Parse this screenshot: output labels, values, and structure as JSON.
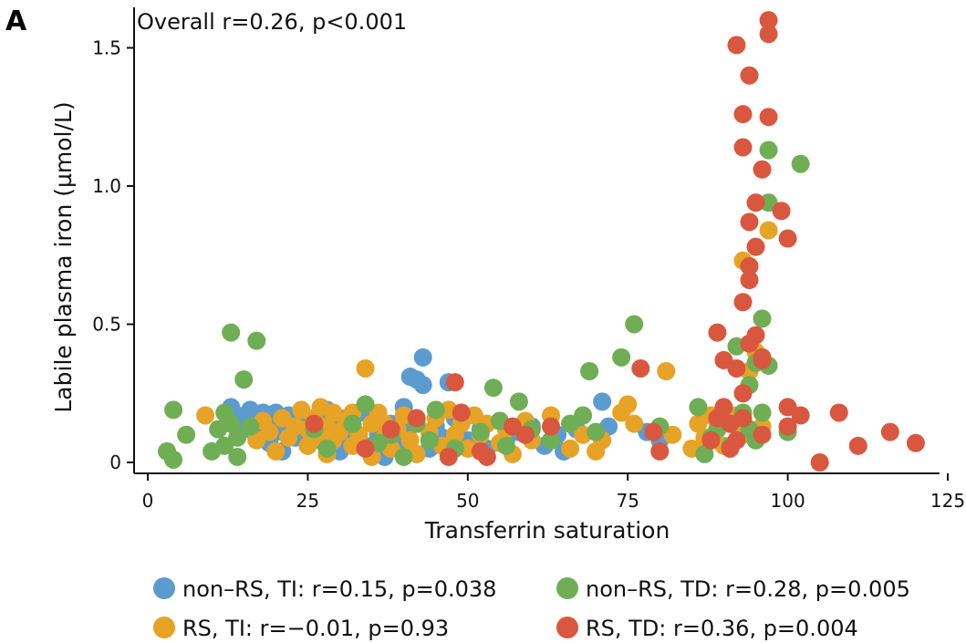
{
  "panel_label": "A",
  "colors": {
    "non_rs_ti": "#5b9bd0",
    "rs_ti": "#e6a325",
    "non_rs_td": "#6fae54",
    "rs_td": "#d9573f",
    "axis": "#111111"
  },
  "chart_data": {
    "type": "scatter",
    "title": "",
    "annotation": "Overall r=0.26, p<0.001",
    "xlabel": "Transferrin saturation",
    "ylabel": "Labile plasma iron (µmol/L)",
    "xlim": [
      0,
      127
    ],
    "ylim": [
      0,
      1.65
    ],
    "xticks": [
      0,
      25,
      50,
      75,
      100,
      125
    ],
    "xtick_labels": [
      "0",
      "25",
      "50",
      "75",
      "100",
      "125"
    ],
    "yticks": [
      0,
      0.5,
      1.0,
      1.5
    ],
    "ytick_labels": [
      "0",
      "0.5",
      "1.0",
      "1.5"
    ],
    "grid": false,
    "legend_position": "bottom",
    "series": [
      {
        "name": "non–RS, TI: r=0.15, p=0.038",
        "color": "#5b9bd0",
        "points": [
          [
            13,
            0.2
          ],
          [
            14,
            0.17
          ],
          [
            15,
            0.14
          ],
          [
            16,
            0.12
          ],
          [
            16,
            0.19
          ],
          [
            17,
            0.16
          ],
          [
            17,
            0.09
          ],
          [
            18,
            0.13
          ],
          [
            18,
            0.18
          ],
          [
            19,
            0.07
          ],
          [
            19,
            0.15
          ],
          [
            20,
            0.11
          ],
          [
            20,
            0.18
          ],
          [
            21,
            0.04
          ],
          [
            21,
            0.14
          ],
          [
            22,
            0.17
          ],
          [
            23,
            0.09
          ],
          [
            23,
            0.13
          ],
          [
            24,
            0.18
          ],
          [
            25,
            0.06
          ],
          [
            25,
            0.11
          ],
          [
            26,
            0.15
          ],
          [
            27,
            0.08
          ],
          [
            28,
            0.19
          ],
          [
            29,
            0.12
          ],
          [
            30,
            0.04
          ],
          [
            30,
            0.16
          ],
          [
            31,
            0.09
          ],
          [
            32,
            0.13
          ],
          [
            33,
            0.18
          ],
          [
            34,
            0.06
          ],
          [
            35,
            0.15
          ],
          [
            36,
            0.1
          ],
          [
            37,
            0.02
          ],
          [
            38,
            0.14
          ],
          [
            39,
            0.07
          ],
          [
            40,
            0.11
          ],
          [
            40,
            0.2
          ],
          [
            41,
            0.31
          ],
          [
            42,
            0.3
          ],
          [
            43,
            0.38
          ],
          [
            43,
            0.28
          ],
          [
            44,
            0.05
          ],
          [
            45,
            0.13
          ],
          [
            46,
            0.09
          ],
          [
            47,
            0.29
          ],
          [
            48,
            0.16
          ],
          [
            50,
            0.08
          ],
          [
            52,
            0.12
          ],
          [
            53,
            0.05
          ],
          [
            55,
            0.15
          ],
          [
            56,
            0.08
          ],
          [
            58,
            0.11
          ],
          [
            60,
            0.13
          ],
          [
            62,
            0.06
          ],
          [
            64,
            0.1
          ],
          [
            65,
            0.04
          ],
          [
            67,
            0.12
          ],
          [
            71,
            0.22
          ],
          [
            72,
            0.13
          ],
          [
            78,
            0.11
          ],
          [
            80,
            0.08
          ]
        ]
      },
      {
        "name": "RS, TI: r=−0.01, p=0.93",
        "color": "#e6a325",
        "points": [
          [
            9,
            0.17
          ],
          [
            17,
            0.08
          ],
          [
            18,
            0.15
          ],
          [
            19,
            0.11
          ],
          [
            20,
            0.04
          ],
          [
            21,
            0.16
          ],
          [
            22,
            0.09
          ],
          [
            23,
            0.13
          ],
          [
            24,
            0.19
          ],
          [
            25,
            0.06
          ],
          [
            25,
            0.12
          ],
          [
            26,
            0.16
          ],
          [
            27,
            0.09
          ],
          [
            27,
            0.2
          ],
          [
            28,
            0.13
          ],
          [
            28,
            0.03
          ],
          [
            29,
            0.18
          ],
          [
            29,
            0.08
          ],
          [
            30,
            0.11
          ],
          [
            31,
            0.15
          ],
          [
            32,
            0.06
          ],
          [
            32,
            0.18
          ],
          [
            33,
            0.1
          ],
          [
            34,
            0.34
          ],
          [
            35,
            0.14
          ],
          [
            35,
            0.02
          ],
          [
            36,
            0.18
          ],
          [
            37,
            0.09
          ],
          [
            37,
            0.14
          ],
          [
            38,
            0.05
          ],
          [
            39,
            0.12
          ],
          [
            40,
            0.17
          ],
          [
            41,
            0.08
          ],
          [
            42,
            0.14
          ],
          [
            42,
            0.03
          ],
          [
            44,
            0.11
          ],
          [
            45,
            0.16
          ],
          [
            46,
            0.06
          ],
          [
            47,
            0.19
          ],
          [
            48,
            0.1
          ],
          [
            49,
            0.14
          ],
          [
            50,
            0.05
          ],
          [
            51,
            0.17
          ],
          [
            52,
            0.1
          ],
          [
            53,
            0.14
          ],
          [
            55,
            0.07
          ],
          [
            56,
            0.12
          ],
          [
            57,
            0.03
          ],
          [
            59,
            0.15
          ],
          [
            60,
            0.08
          ],
          [
            63,
            0.17
          ],
          [
            66,
            0.05
          ],
          [
            68,
            0.1
          ],
          [
            70,
            0.04
          ],
          [
            71,
            0.08
          ],
          [
            74,
            0.18
          ],
          [
            75,
            0.21
          ],
          [
            76,
            0.14
          ],
          [
            81,
            0.33
          ],
          [
            82,
            0.1
          ],
          [
            85,
            0.05
          ],
          [
            86,
            0.14
          ],
          [
            87,
            0.09
          ],
          [
            88,
            0.17
          ],
          [
            89,
            0.12
          ],
          [
            90,
            0.06
          ],
          [
            91,
            0.14
          ],
          [
            92,
            0.17
          ],
          [
            93,
            0.73
          ],
          [
            93,
            0.1
          ],
          [
            94,
            0.33
          ],
          [
            95,
            0.4
          ],
          [
            96,
            0.13
          ],
          [
            97,
            0.84
          ]
        ]
      },
      {
        "name": "non–RS, TD: r=0.28, p=0.005",
        "color": "#6fae54",
        "points": [
          [
            3,
            0.04
          ],
          [
            4,
            0.19
          ],
          [
            4,
            0.01
          ],
          [
            6,
            0.1
          ],
          [
            10,
            0.04
          ],
          [
            11,
            0.12
          ],
          [
            12,
            0.18
          ],
          [
            12,
            0.06
          ],
          [
            13,
            0.47
          ],
          [
            13,
            0.14
          ],
          [
            14,
            0.09
          ],
          [
            14,
            0.02
          ],
          [
            15,
            0.3
          ],
          [
            16,
            0.13
          ],
          [
            17,
            0.44
          ],
          [
            26,
            0.12
          ],
          [
            28,
            0.05
          ],
          [
            32,
            0.14
          ],
          [
            34,
            0.21
          ],
          [
            36,
            0.07
          ],
          [
            38,
            0.1
          ],
          [
            40,
            0.02
          ],
          [
            42,
            0.14
          ],
          [
            44,
            0.08
          ],
          [
            45,
            0.19
          ],
          [
            48,
            0.05
          ],
          [
            52,
            0.11
          ],
          [
            54,
            0.27
          ],
          [
            55,
            0.15
          ],
          [
            56,
            0.06
          ],
          [
            58,
            0.22
          ],
          [
            60,
            0.12
          ],
          [
            63,
            0.08
          ],
          [
            66,
            0.14
          ],
          [
            68,
            0.17
          ],
          [
            69,
            0.33
          ],
          [
            70,
            0.11
          ],
          [
            74,
            0.38
          ],
          [
            76,
            0.5
          ],
          [
            80,
            0.13
          ],
          [
            86,
            0.2
          ],
          [
            87,
            0.03
          ],
          [
            88,
            0.09
          ],
          [
            89,
            0.12
          ],
          [
            90,
            0.15
          ],
          [
            91,
            0.06
          ],
          [
            92,
            0.42
          ],
          [
            93,
            0.18
          ],
          [
            94,
            0.28
          ],
          [
            94,
            0.12
          ],
          [
            95,
            0.08
          ],
          [
            95,
            0.36
          ],
          [
            96,
            0.18
          ],
          [
            96,
            0.52
          ],
          [
            97,
            1.13
          ],
          [
            97,
            0.94
          ],
          [
            97,
            0.35
          ],
          [
            100,
            0.11
          ],
          [
            102,
            1.08
          ]
        ]
      },
      {
        "name": "RS, TD: r=0.36, p=0.004",
        "color": "#d9573f",
        "points": [
          [
            26,
            0.14
          ],
          [
            34,
            0.05
          ],
          [
            38,
            0.12
          ],
          [
            42,
            0.16
          ],
          [
            47,
            0.02
          ],
          [
            48,
            0.29
          ],
          [
            49,
            0.18
          ],
          [
            52,
            0.04
          ],
          [
            53,
            0.02
          ],
          [
            57,
            0.13
          ],
          [
            59,
            0.1
          ],
          [
            63,
            0.13
          ],
          [
            77,
            0.34
          ],
          [
            79,
            0.11
          ],
          [
            80,
            0.04
          ],
          [
            88,
            0.08
          ],
          [
            89,
            0.16
          ],
          [
            89,
            0.47
          ],
          [
            90,
            0.2
          ],
          [
            90,
            0.37
          ],
          [
            91,
            0.14
          ],
          [
            91,
            0.05
          ],
          [
            92,
            1.51
          ],
          [
            92,
            0.34
          ],
          [
            92,
            0.08
          ],
          [
            93,
            1.14
          ],
          [
            93,
            1.26
          ],
          [
            93,
            0.58
          ],
          [
            93,
            0.25
          ],
          [
            93,
            0.16
          ],
          [
            94,
            1.4
          ],
          [
            94,
            0.87
          ],
          [
            94,
            0.66
          ],
          [
            94,
            0.71
          ],
          [
            94,
            0.43
          ],
          [
            95,
            0.46
          ],
          [
            95,
            0.78
          ],
          [
            95,
            0.94
          ],
          [
            96,
            0.1
          ],
          [
            96,
            0.37
          ],
          [
            97,
            1.55
          ],
          [
            97,
            1.6
          ],
          [
            97,
            1.25
          ],
          [
            96,
            1.06
          ],
          [
            96,
            0.38
          ],
          [
            99,
            0.91
          ],
          [
            100,
            0.81
          ],
          [
            100,
            0.2
          ],
          [
            100,
            0.13
          ],
          [
            102,
            0.17
          ],
          [
            105,
            0.0
          ],
          [
            108,
            0.18
          ],
          [
            111,
            0.06
          ],
          [
            116,
            0.11
          ],
          [
            120,
            0.07
          ]
        ]
      }
    ]
  },
  "legend": [
    {
      "key": "non_rs_ti",
      "label": "non–RS, TI: r=0.15, p=0.038",
      "color": "#5b9bd0"
    },
    {
      "key": "non_rs_td",
      "label": "non–RS, TD: r=0.28, p=0.005",
      "color": "#6fae54"
    },
    {
      "key": "rs_ti",
      "label": "RS, TI: r=−0.01, p=0.93",
      "color": "#e6a325"
    },
    {
      "key": "rs_td",
      "label": "RS, TD: r=0.36, p=0.004",
      "color": "#d9573f"
    }
  ]
}
